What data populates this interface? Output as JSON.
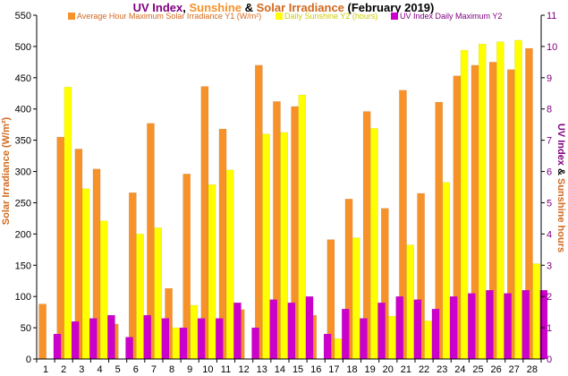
{
  "chart_data": {
    "type": "bar",
    "title": {
      "part1": "UV Index",
      "sep1": ", ",
      "part2": "Sunshine",
      "sep2": " & ",
      "part3": "Solar Irradiance",
      "part4": " (February 2019)"
    },
    "ylabel_left": "Solar Irradiance (W/m²)",
    "ylabel_right": {
      "part1": "UV Index",
      "sep": " & ",
      "part2": "Sunshine hours"
    },
    "y1lim": [
      0,
      550
    ],
    "y1ticks": [
      0,
      50,
      100,
      150,
      200,
      250,
      300,
      350,
      400,
      450,
      500,
      550
    ],
    "y2lim": [
      0,
      11
    ],
    "y2ticks": [
      0,
      1,
      2,
      3,
      4,
      5,
      6,
      7,
      8,
      9,
      10,
      11
    ],
    "grid": false,
    "legend_position": "top",
    "categories": [
      "1",
      "2",
      "3",
      "4",
      "5",
      "6",
      "7",
      "8",
      "9",
      "10",
      "11",
      "12",
      "13",
      "14",
      "15",
      "16",
      "17",
      "18",
      "19",
      "20",
      "21",
      "22",
      "23",
      "24",
      "25",
      "26",
      "27",
      "28"
    ],
    "series": [
      {
        "name": "Average Hour Maximum Solar Irradiance Y1 (W/m²)",
        "axis": "y1",
        "color": "#f7922a",
        "values": [
          88,
          355,
          336,
          304,
          56,
          266,
          377,
          113,
          296,
          436,
          368,
          79,
          470,
          412,
          404,
          70,
          191,
          256,
          396,
          241,
          430,
          265,
          411,
          453,
          470,
          475,
          463,
          497
        ]
      },
      {
        "name": "Daily Sunshine Y2 (hours)",
        "axis": "y2",
        "color": "#ffff00",
        "values": [
          0,
          8.7,
          5.45,
          4.42,
          0,
          4.0,
          4.2,
          1.0,
          1.72,
          5.58,
          6.05,
          0,
          7.2,
          7.25,
          8.45,
          0,
          0.65,
          3.88,
          7.38,
          1.37,
          3.65,
          1.22,
          5.65,
          9.88,
          10.08,
          10.15,
          10.2,
          3.05
        ]
      },
      {
        "name": "UV Index Daily Maximum Y2",
        "axis": "y2",
        "color": "#cc00cc",
        "values": [
          0.8,
          1.2,
          1.3,
          1.4,
          0.7,
          1.4,
          1.3,
          1.0,
          1.3,
          1.3,
          1.8,
          1.0,
          1.9,
          1.8,
          2.0,
          0.8,
          1.6,
          1.3,
          1.8,
          2.0,
          1.9,
          1.6,
          2.0,
          2.1,
          2.2,
          2.1,
          2.2,
          2.2
        ]
      }
    ],
    "colors": {
      "title_uv": "#800080",
      "title_sunshine": "#f7922a",
      "title_solar": "#d2691e",
      "title_rest": "#000000",
      "ylabel_left": "#d2691e",
      "ylabel_right_uv": "#800080",
      "ylabel_right_sun": "#d2691e",
      "axis_right_ticks": "#800080",
      "legend_solar": "#d2691e",
      "legend_sun": "#cccc00",
      "legend_uv": "#800080"
    }
  }
}
